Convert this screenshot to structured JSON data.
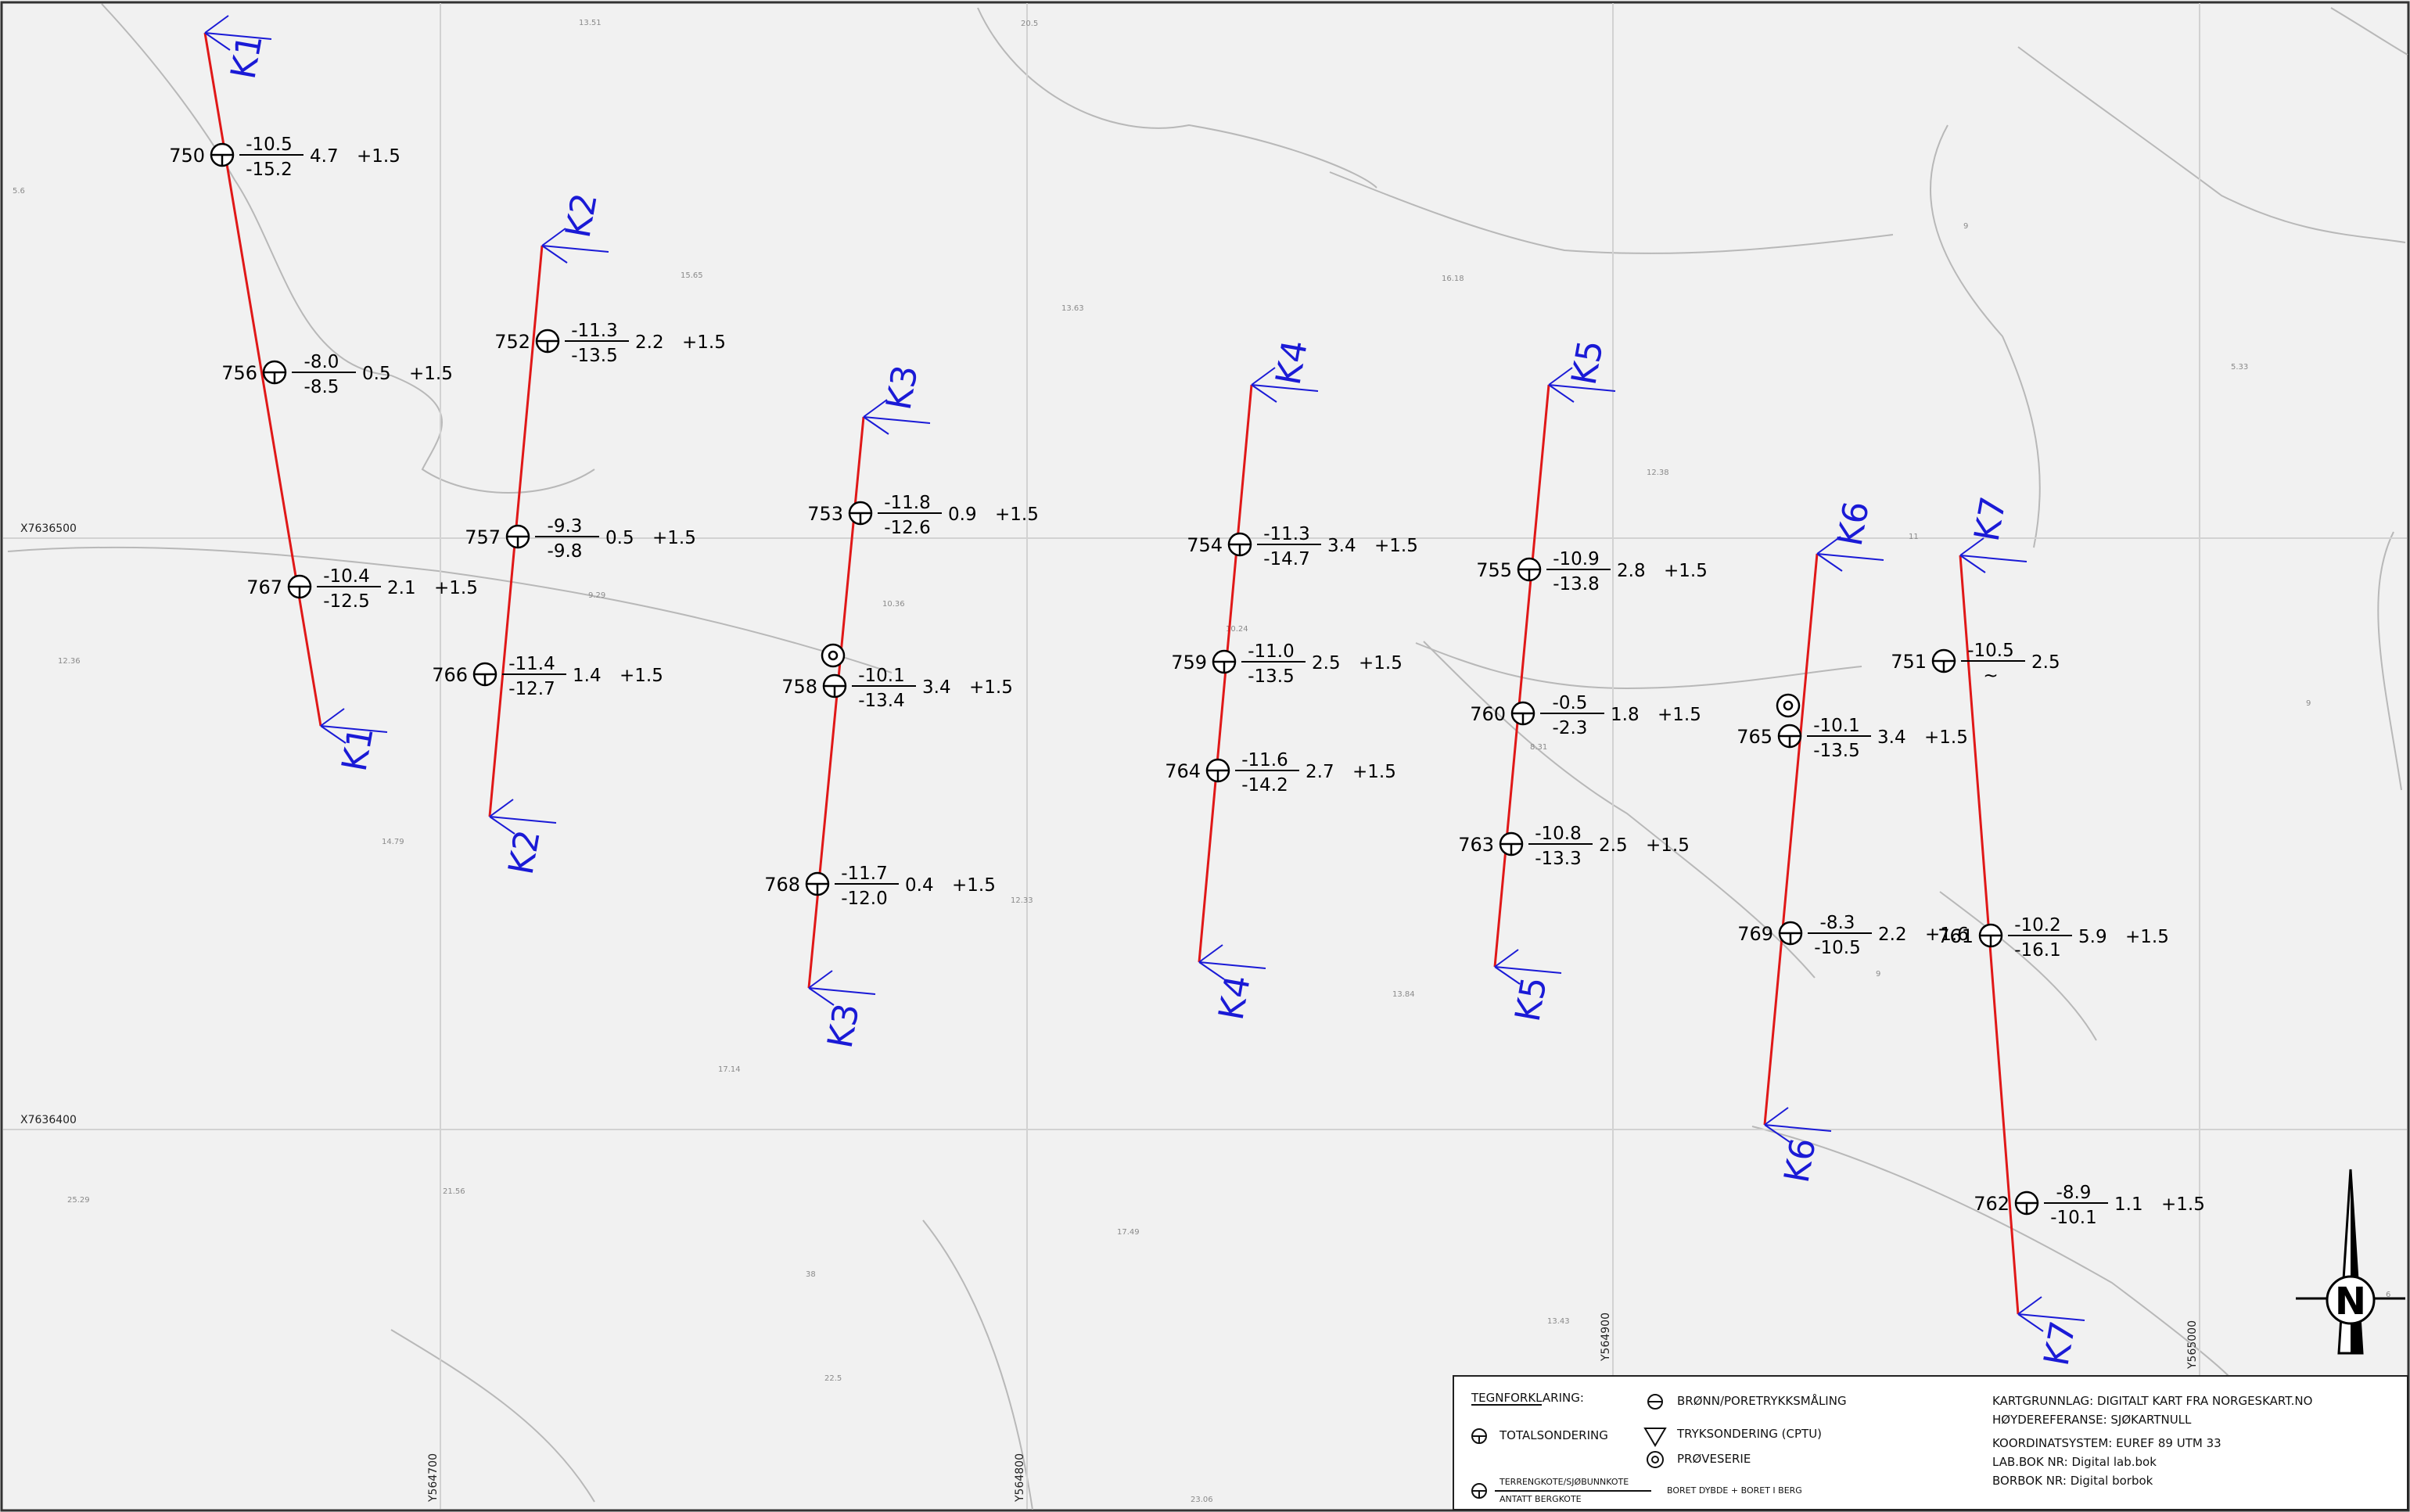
{
  "map": {
    "grid": {
      "x_labels": [
        "X7636500",
        "X7636400"
      ],
      "y_labels": [
        "Y564700",
        "Y564800",
        "Y564900",
        "Y565000"
      ]
    },
    "spot_heights": [
      "13.51",
      "20.5",
      "5.6",
      "15.65",
      "13.63",
      "16.18",
      "9",
      "5.33",
      "12.38",
      "9.29",
      "10.36",
      "12.36",
      "10.24",
      "11",
      "9",
      "8.31",
      "14.79",
      "12.33",
      "13.84",
      "17.14",
      "9",
      "21.56",
      "25.29",
      "17.49",
      "38",
      "13.43",
      "22.5",
      "23.06",
      "6"
    ],
    "profiles": [
      {
        "name": "K1",
        "start_label": "K1",
        "end_label": "K1"
      },
      {
        "name": "K2",
        "start_label": "K2",
        "end_label": "K2"
      },
      {
        "name": "K3",
        "start_label": "K3",
        "end_label": "K3"
      },
      {
        "name": "K4",
        "start_label": "K4",
        "end_label": "K4"
      },
      {
        "name": "K5",
        "start_label": "K5",
        "end_label": "K5"
      },
      {
        "name": "K6",
        "start_label": "K6",
        "end_label": "K6"
      },
      {
        "name": "K7",
        "start_label": "K7",
        "end_label": "K7"
      }
    ],
    "boreholes": [
      {
        "id": "750",
        "type": "total",
        "terrain": "-10.5",
        "rock": "-15.2",
        "depth": "4.7",
        "extra": "+1.5"
      },
      {
        "id": "756",
        "type": "total",
        "terrain": "-8.0",
        "rock": "-8.5",
        "depth": "0.5",
        "extra": "+1.5"
      },
      {
        "id": "767",
        "type": "total",
        "terrain": "-10.4",
        "rock": "-12.5",
        "depth": "2.1",
        "extra": "+1.5"
      },
      {
        "id": "752",
        "type": "total",
        "terrain": "-11.3",
        "rock": "-13.5",
        "depth": "2.2",
        "extra": "+1.5"
      },
      {
        "id": "757",
        "type": "total",
        "terrain": "-9.3",
        "rock": "-9.8",
        "depth": "0.5",
        "extra": "+1.5"
      },
      {
        "id": "766",
        "type": "total",
        "terrain": "-11.4",
        "rock": "-12.7",
        "depth": "1.4",
        "extra": "+1.5"
      },
      {
        "id": "753",
        "type": "total",
        "terrain": "-11.8",
        "rock": "-12.6",
        "depth": "0.9",
        "extra": "+1.5"
      },
      {
        "id": "758",
        "type": "total",
        "terrain": "-10.1",
        "rock": "-13.4",
        "depth": "3.4",
        "extra": "+1.5",
        "sample": true
      },
      {
        "id": "768",
        "type": "total",
        "terrain": "-11.7",
        "rock": "-12.0",
        "depth": "0.4",
        "extra": "+1.5"
      },
      {
        "id": "754",
        "type": "total",
        "terrain": "-11.3",
        "rock": "-14.7",
        "depth": "3.4",
        "extra": "+1.5"
      },
      {
        "id": "759",
        "type": "total",
        "terrain": "-11.0",
        "rock": "-13.5",
        "depth": "2.5",
        "extra": "+1.5"
      },
      {
        "id": "764",
        "type": "total",
        "terrain": "-11.6",
        "rock": "-14.2",
        "depth": "2.7",
        "extra": "+1.5"
      },
      {
        "id": "755",
        "type": "total",
        "terrain": "-10.9",
        "rock": "-13.8",
        "depth": "2.8",
        "extra": "+1.5"
      },
      {
        "id": "760",
        "type": "total",
        "terrain": "-0.5",
        "rock": "-2.3",
        "depth": "1.8",
        "extra": "+1.5"
      },
      {
        "id": "763",
        "type": "total",
        "terrain": "-10.8",
        "rock": "-13.3",
        "depth": "2.5",
        "extra": "+1.5"
      },
      {
        "id": "765",
        "type": "total",
        "terrain": "-10.1",
        "rock": "-13.5",
        "depth": "3.4",
        "extra": "+1.5",
        "sample": true
      },
      {
        "id": "769",
        "type": "total",
        "terrain": "-8.3",
        "rock": "-10.5",
        "depth": "2.2",
        "extra": "+1.6"
      },
      {
        "id": "751",
        "type": "total",
        "terrain": "-10.5",
        "rock": "~",
        "depth": "2.5",
        "extra": ""
      },
      {
        "id": "761",
        "type": "total",
        "terrain": "-10.2",
        "rock": "-16.1",
        "depth": "5.9",
        "extra": "+1.5"
      },
      {
        "id": "762",
        "type": "total",
        "terrain": "-8.9",
        "rock": "-10.1",
        "depth": "1.1",
        "extra": "+1.5"
      }
    ],
    "north_arrow": {
      "label": "N"
    },
    "colors": {
      "profile_line": "#e01818",
      "profile_label": "#1a1ad6",
      "grid": "#d2d2d2",
      "contour": "#b8b8b8",
      "background": "#f1f1f1"
    }
  },
  "legend": {
    "heading": "TEGNFORKLARING:",
    "total": "TOTALSONDERING",
    "well": "BRØNN/PORETRYKKSMÅLING",
    "cptu": "TRYKSONDERING (CPTU)",
    "sample": "PRØVESERIE",
    "terrain_label": "TERRENGKOTE/SJØBUNNKOTE",
    "rock_label": "ANTATT BERGKOTE",
    "drilled": "BORET DYBDE + BORET I BERG",
    "info": [
      "KARTGRUNNLAG: DIGITALT KART FRA NORGESKART.NO",
      "HØYDEREFERANSE: SJØKARTNULL",
      "KOORDINATSYSTEM: EUREF 89 UTM 33",
      "LAB.BOK NR: Digital lab.bok",
      "BORBOK NR: Digital borbok"
    ]
  }
}
